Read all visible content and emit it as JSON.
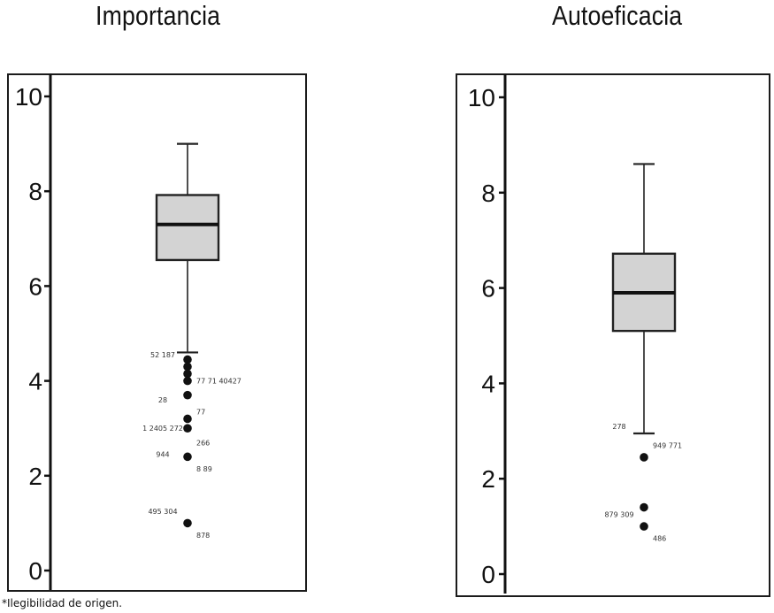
{
  "titles": {
    "left": "Importancia",
    "right": "Autoeficacia"
  },
  "footnote": "*Ilegibilidad de origen.",
  "chart_data": [
    {
      "type": "box",
      "title": "Importancia",
      "ylim": [
        0,
        10
      ],
      "yticks": [
        0,
        2,
        4,
        6,
        8,
        10
      ],
      "box": {
        "whisker_low": 4.6,
        "q1": 6.55,
        "median": 7.3,
        "q3": 7.92,
        "whisker_high": 9.0
      },
      "outliers": [
        4.45,
        4.3,
        4.15,
        4.0,
        3.7,
        3.2,
        3.0,
        2.4,
        1.0
      ],
      "outlier_labels": [
        {
          "text": "52 187",
          "y": 4.55
        },
        {
          "text": "77 71 40427",
          "y": 4.0
        },
        {
          "text": "28",
          "y": 3.6
        },
        {
          "text": "77",
          "y": 3.35
        },
        {
          "text": "1 2405 272",
          "y": 3.0
        },
        {
          "text": "266",
          "y": 2.7
        },
        {
          "text": "944",
          "y": 2.45
        },
        {
          "text": "8 89",
          "y": 2.15
        },
        {
          "text": "495 304",
          "y": 1.25
        },
        {
          "text": "878",
          "y": 0.75
        }
      ]
    },
    {
      "type": "box",
      "title": "Autoeficacia",
      "ylim": [
        0,
        10
      ],
      "yticks": [
        0,
        2,
        4,
        6,
        8,
        10
      ],
      "box": {
        "whisker_low": 2.95,
        "q1": 5.1,
        "median": 5.9,
        "q3": 6.72,
        "whisker_high": 8.6
      },
      "outliers": [
        2.45,
        1.4,
        1.0
      ],
      "outlier_labels": [
        {
          "text": "278",
          "y": 3.1
        },
        {
          "text": "949 771",
          "y": 2.7
        },
        {
          "text": "879 309",
          "y": 1.25
        },
        {
          "text": "486",
          "y": 0.75
        }
      ]
    }
  ]
}
